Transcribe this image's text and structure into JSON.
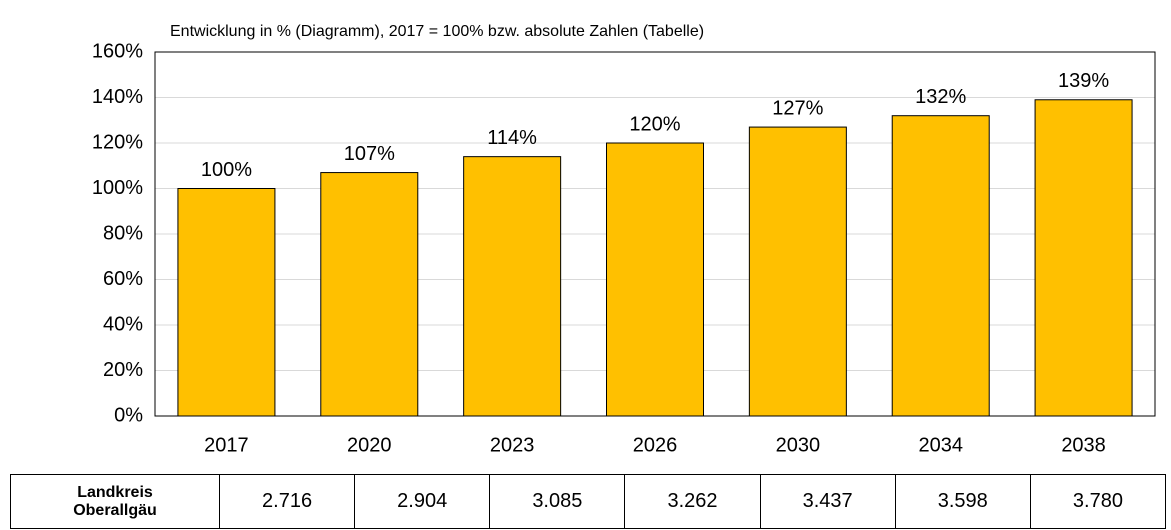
{
  "chart_data": {
    "type": "bar",
    "subtitle": "Entwicklung in % (Diagramm), 2017 = 100% bzw. absolute Zahlen (Tabelle)",
    "categories": [
      "2017",
      "2020",
      "2023",
      "2026",
      "2030",
      "2034",
      "2038"
    ],
    "values": [
      100,
      107,
      114,
      120,
      127,
      132,
      139
    ],
    "value_labels": [
      "100%",
      "107%",
      "114%",
      "120%",
      "127%",
      "132%",
      "139%"
    ],
    "color": "#ffc000",
    "ylim": [
      0,
      160
    ],
    "yticks": [
      {
        "value": 0,
        "label": "0%"
      },
      {
        "value": 20,
        "label": "20%"
      },
      {
        "value": 40,
        "label": "40%"
      },
      {
        "value": 60,
        "label": "60%"
      },
      {
        "value": 80,
        "label": "80%"
      },
      {
        "value": 100,
        "label": "100%"
      },
      {
        "value": 120,
        "label": "120%"
      },
      {
        "value": 140,
        "label": "140%"
      },
      {
        "value": 160,
        "label": "160%"
      }
    ],
    "grid": true
  },
  "table": {
    "row_label": "Landkreis Oberallgäu",
    "cells": [
      "2.716",
      "2.904",
      "3.085",
      "3.262",
      "3.437",
      "3.598",
      "3.780"
    ]
  }
}
